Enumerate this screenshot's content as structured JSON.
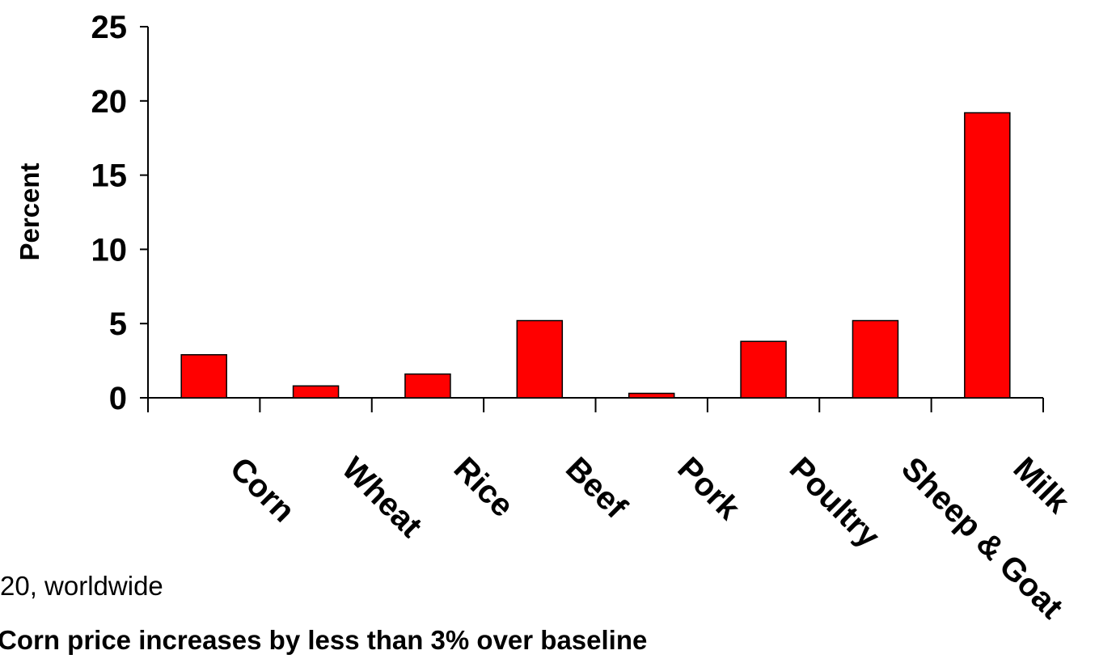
{
  "chart_data": {
    "type": "bar",
    "categories": [
      "Corn",
      "Wheat",
      "Rice",
      "Beef",
      "Pork",
      "Poultry",
      "Sheep & Goat",
      "Milk"
    ],
    "values": [
      2.9,
      0.8,
      1.6,
      5.2,
      0.3,
      3.8,
      5.2,
      19.2
    ],
    "ylabel": "Percent",
    "xlabel": "",
    "ylim": [
      0,
      25
    ],
    "yticks": [
      "0",
      "5",
      "10",
      "15",
      "20",
      "25"
    ],
    "bar_color": "#ff0000",
    "grid": false
  },
  "notes": {
    "line1": "20, worldwide",
    "line2": "Corn price increases by less than 3% over baseline"
  }
}
